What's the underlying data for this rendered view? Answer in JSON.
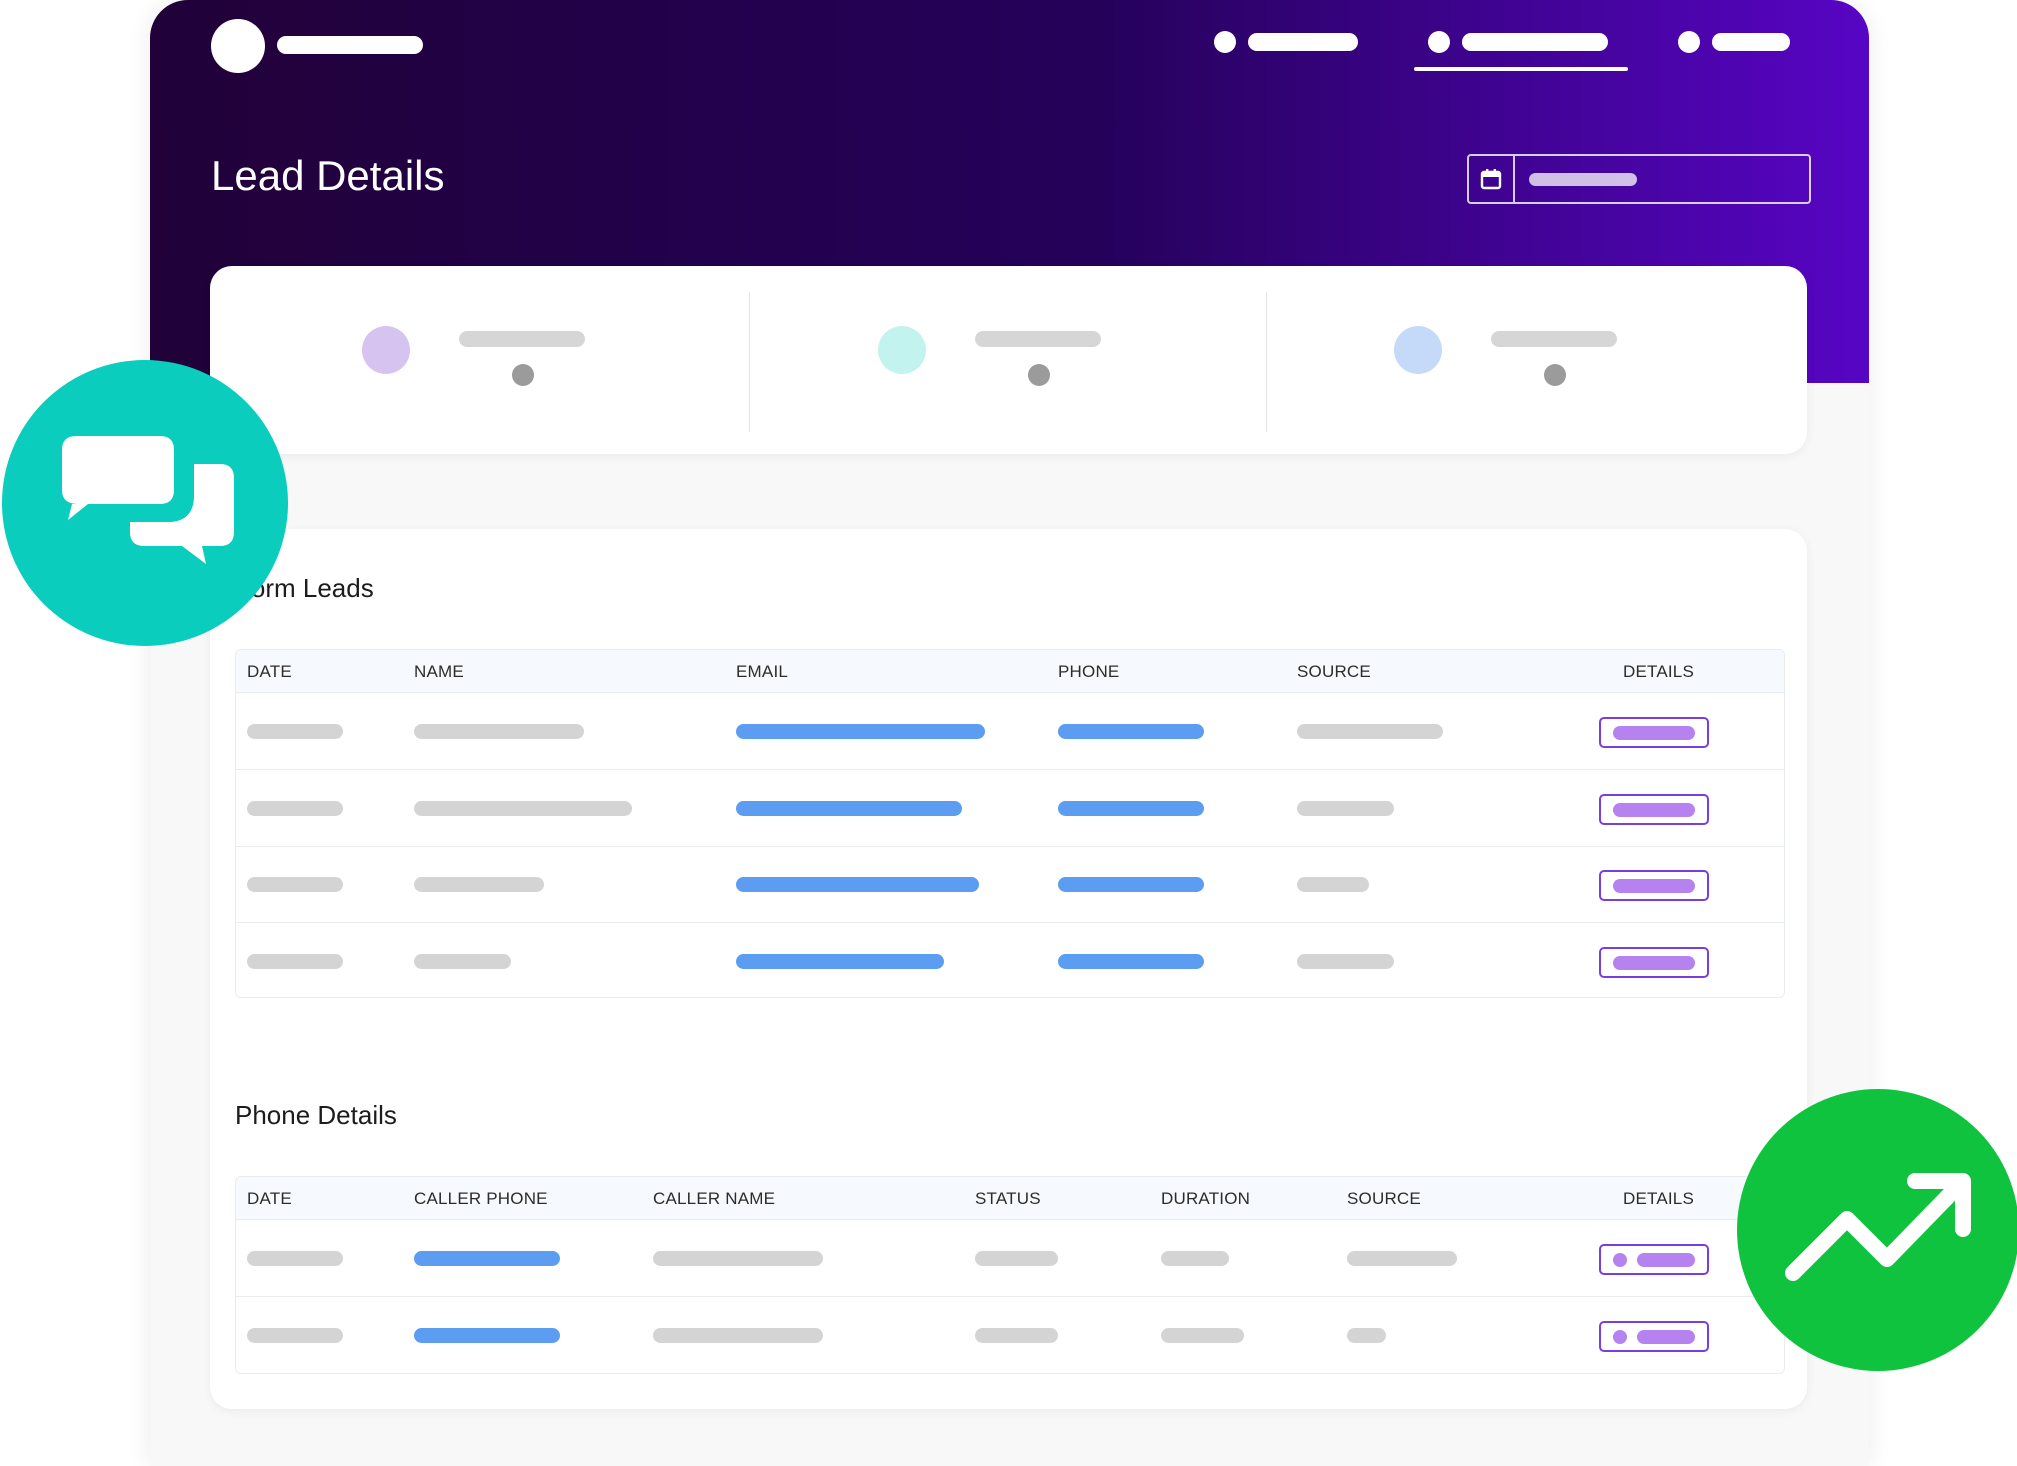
{
  "header": {
    "page_title": "Lead Details",
    "calendar_icon": "calendar-icon"
  },
  "form_leads": {
    "title": "Form Leads",
    "columns": [
      "DATE",
      "NAME",
      "EMAIL",
      "PHONE",
      "SOURCE",
      "DETAILS"
    ]
  },
  "phone_details": {
    "title": "Phone Details",
    "columns": [
      "DATE",
      "CALLER PHONE",
      "CALLER NAME",
      "STATUS",
      "DURATION",
      "SOURCE",
      "DETAILS"
    ]
  },
  "floating_badges": {
    "chat_icon": "chat-bubbles-icon",
    "trend_icon": "trending-up-icon"
  },
  "colors": {
    "header_start": "#210138",
    "header_end": "#5705c4",
    "chat_badge": "#0acdbe",
    "trend_badge": "#10c33f",
    "link_blue": "#5c9df2",
    "details_purple": "#7a3ee0"
  }
}
